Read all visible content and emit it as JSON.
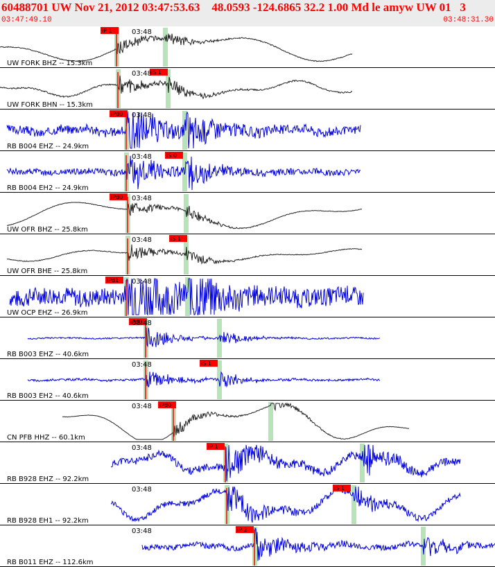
{
  "header": {
    "title": "60488701 UW Nov 21, 2012 03:47:53.63    48.0593 -124.6865 32.2 1.00 Md le amyw UW 01   3",
    "start_time": "03:47:49.10",
    "end_time": "03:48:31.30"
  },
  "colors": {
    "header_text": "#ff0000",
    "header_bg": "#ececec",
    "trace_black": "#222222",
    "trace_blue": "#0000dd",
    "pick": "#ff0000",
    "pick_band": "#b8e3b8"
  },
  "minute_label": "03:48",
  "traces": [
    {
      "label": "UW FORK BHZ -- 15.3km",
      "color": "black",
      "pick": "iP 1",
      "amp": 0.55,
      "freq": 0.8,
      "noise": 0.05,
      "seed": 1
    },
    {
      "label": "UW FORK BHN -- 15.3km",
      "color": "black",
      "pick": "iS 1",
      "amp": 0.3,
      "freq": 1.4,
      "noise": 0.08,
      "seed": 2
    },
    {
      "label": "RB B004 EHZ -- 24.9km",
      "color": "blue",
      "pick": "iPd0",
      "amp": 0.12,
      "freq": 3,
      "noise": 0.5,
      "seed": 3
    },
    {
      "label": "RB B004 EH2 -- 24.9km",
      "color": "blue",
      "pick": "iS 0",
      "amp": 0.05,
      "freq": 3,
      "noise": 0.35,
      "seed": 4
    },
    {
      "label": "UW OFR BHZ -- 25.8km",
      "color": "black",
      "pick": "iPd0",
      "amp": 0.55,
      "freq": 0.8,
      "noise": 0.03,
      "seed": 5
    },
    {
      "label": "UW OFR BHE -- 25.8km",
      "color": "black",
      "pick": "iS 1",
      "amp": 0.25,
      "freq": 1,
      "noise": 0.04,
      "seed": 6
    },
    {
      "label": "UW OCP EHZ -- 26.9km",
      "color": "blue",
      "pick": "iPd1",
      "amp": 0.1,
      "freq": 3,
      "noise": 1,
      "seed": 7
    },
    {
      "label": "RB B003 EHZ -- 40.6km",
      "color": "blue",
      "pick": "iPd0",
      "amp": 0.02,
      "freq": 3,
      "noise": 0.08,
      "seed": 8
    },
    {
      "label": "RB B003 EH2 -- 40.6km",
      "color": "blue",
      "pick": "iS 1",
      "amp": 0.03,
      "freq": 3,
      "noise": 0.12,
      "seed": 9
    },
    {
      "label": "CN PFB HHZ -- 60.1km",
      "color": "black",
      "pick": "iPd0",
      "amp": 0.8,
      "freq": 1,
      "noise": 0.02,
      "seed": 10
    },
    {
      "label": "RB B928 EHZ -- 92.2km",
      "color": "blue",
      "pick": "iP 1",
      "amp": 0.4,
      "freq": 2,
      "noise": 0.4,
      "seed": 11
    },
    {
      "label": "RB B928 EH1 -- 92.2km",
      "color": "blue",
      "pick": "iS 1",
      "amp": 0.55,
      "freq": 1.6,
      "noise": 0.3,
      "seed": 12
    },
    {
      "label": "RB B011 EHZ -- 112.6km",
      "color": "blue",
      "pick": "iP 2",
      "amp": 0.1,
      "freq": 3,
      "noise": 0.3,
      "seed": 13
    }
  ]
}
